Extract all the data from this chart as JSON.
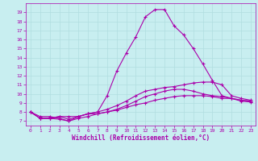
{
  "title": "",
  "xlabel": "Windchill (Refroidissement éolien,°C)",
  "xlim": [
    -0.5,
    23.5
  ],
  "ylim": [
    6.5,
    20
  ],
  "xticks": [
    0,
    1,
    2,
    3,
    4,
    5,
    6,
    7,
    8,
    9,
    10,
    11,
    12,
    13,
    14,
    15,
    16,
    17,
    18,
    19,
    20,
    21,
    22,
    23
  ],
  "yticks": [
    7,
    8,
    9,
    10,
    11,
    12,
    13,
    14,
    15,
    16,
    17,
    18,
    19
  ],
  "background_color": "#c8eef0",
  "grid_color": "#b0dde0",
  "line_color": "#aa00aa",
  "lines": [
    [
      8.0,
      7.5,
      7.5,
      7.3,
      7.0,
      7.3,
      7.5,
      7.8,
      8.0,
      8.2,
      8.5,
      8.8,
      9.0,
      9.3,
      9.5,
      9.7,
      9.8,
      9.8,
      9.8,
      9.7,
      9.5,
      9.5,
      9.3,
      9.2
    ],
    [
      8.0,
      7.3,
      7.3,
      7.5,
      7.5,
      7.5,
      7.8,
      7.8,
      8.0,
      8.3,
      8.7,
      9.2,
      9.7,
      10.0,
      10.3,
      10.5,
      10.5,
      10.3,
      10.0,
      9.8,
      9.7,
      9.5,
      9.3,
      9.2
    ],
    [
      8.0,
      7.3,
      7.3,
      7.5,
      7.2,
      7.5,
      7.8,
      8.0,
      8.3,
      8.7,
      9.2,
      9.8,
      10.3,
      10.5,
      10.7,
      10.8,
      11.0,
      11.2,
      11.3,
      11.3,
      11.0,
      9.8,
      9.5,
      9.3
    ],
    [
      8.0,
      7.3,
      7.3,
      7.2,
      7.0,
      7.5,
      7.8,
      8.0,
      9.8,
      12.5,
      14.5,
      16.3,
      18.5,
      19.3,
      19.3,
      17.5,
      16.5,
      15.0,
      13.3,
      11.5,
      9.8,
      9.5,
      9.2,
      9.1
    ]
  ]
}
